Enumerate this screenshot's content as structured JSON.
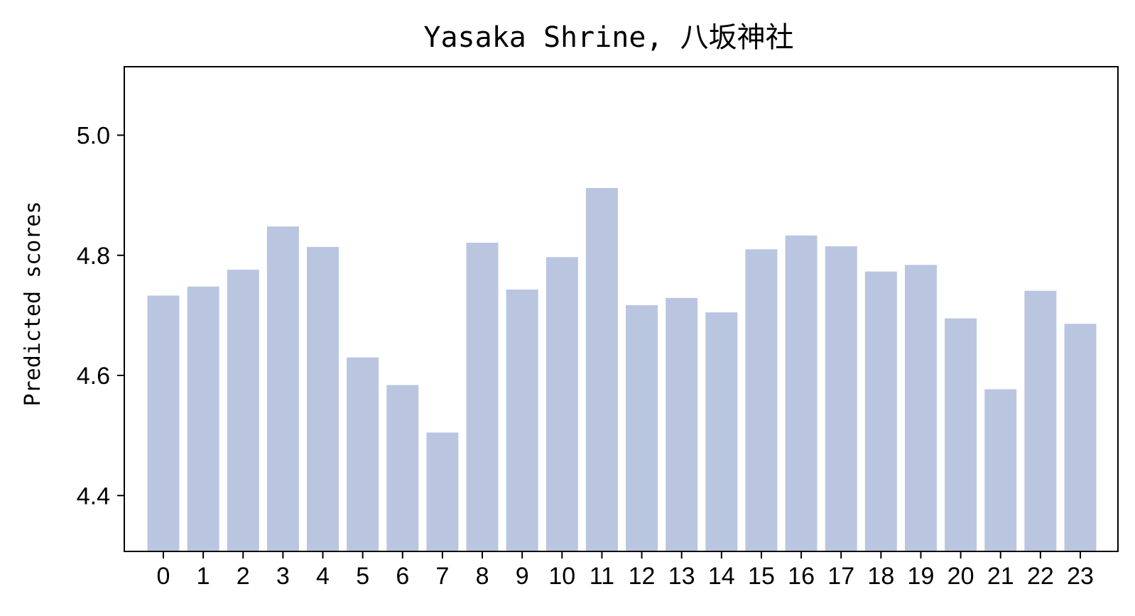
{
  "chart_data": {
    "type": "bar",
    "title": "Yasaka Shrine, 八坂神社",
    "xlabel": "",
    "ylabel": "Predicted scores",
    "categories": [
      "0",
      "1",
      "2",
      "3",
      "4",
      "5",
      "6",
      "7",
      "8",
      "9",
      "10",
      "11",
      "12",
      "13",
      "14",
      "15",
      "16",
      "17",
      "18",
      "19",
      "20",
      "21",
      "22",
      "23"
    ],
    "values": [
      4.733,
      4.748,
      4.776,
      4.848,
      4.814,
      4.63,
      4.584,
      4.505,
      4.821,
      4.743,
      4.797,
      4.912,
      4.717,
      4.729,
      4.705,
      4.81,
      4.833,
      4.815,
      4.773,
      4.784,
      4.695,
      4.577,
      4.741,
      4.686
    ],
    "ylim": [
      4.307,
      5.114
    ],
    "yticks": [
      "4.4",
      "4.6",
      "4.8",
      "5.0"
    ],
    "bar_color": "#bac6e0",
    "grid": false,
    "legend": "none"
  }
}
